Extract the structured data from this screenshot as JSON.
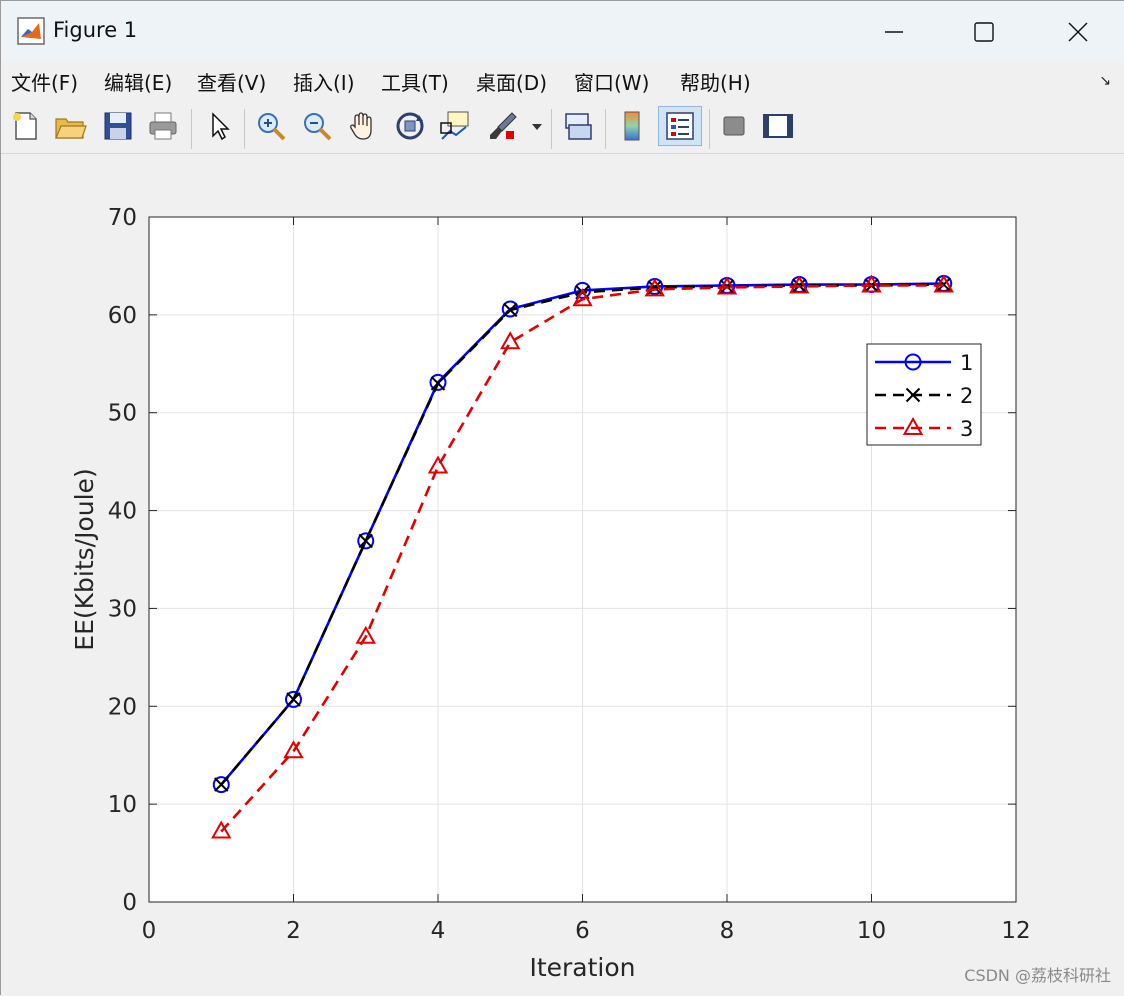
{
  "window": {
    "title": "Figure 1",
    "controls": [
      "minimize",
      "maximize",
      "close"
    ]
  },
  "menu": {
    "items": [
      {
        "label": "文件(F)",
        "name": "menu-file"
      },
      {
        "label": "编辑(E)",
        "name": "menu-edit"
      },
      {
        "label": "查看(V)",
        "name": "menu-view"
      },
      {
        "label": "插入(I)",
        "name": "menu-insert"
      },
      {
        "label": "工具(T)",
        "name": "menu-tools"
      },
      {
        "label": "桌面(D)",
        "name": "menu-desktop"
      },
      {
        "label": "窗口(W)",
        "name": "menu-window"
      },
      {
        "label": "帮助(H)",
        "name": "menu-help"
      }
    ],
    "dock_arrow": "↘"
  },
  "toolbar": {
    "icons": [
      "new-figure-icon",
      "open-file-icon",
      "save-icon",
      "print-icon",
      "select-arrow-icon",
      "zoom-in-icon",
      "zoom-out-icon",
      "pan-hand-icon",
      "rotate-3d-icon",
      "data-cursor-icon",
      "brush-icon",
      "brush-dropdown-icon",
      "link-plot-icon",
      "colorbar-icon",
      "legend-icon",
      "hide-plot-tools-icon",
      "show-plot-tools-icon"
    ],
    "active": "legend-icon"
  },
  "chart_data": {
    "type": "line",
    "xlabel": "Iteration",
    "ylabel": "EE(Kbits/Joule)",
    "xlim": [
      0,
      12
    ],
    "ylim": [
      0,
      70
    ],
    "xticks": [
      0,
      2,
      4,
      6,
      8,
      10,
      12
    ],
    "yticks": [
      0,
      10,
      20,
      30,
      40,
      50,
      60,
      70
    ],
    "grid": true,
    "legend_position": "upper-right",
    "series": [
      {
        "name": "1",
        "color": "#0000ff",
        "line": "solid",
        "marker": "circle",
        "x": [
          1,
          2,
          3,
          4,
          5,
          6,
          7,
          8,
          9,
          10,
          11
        ],
        "y": [
          12.0,
          20.7,
          36.9,
          53.1,
          60.6,
          62.5,
          62.9,
          63.0,
          63.1,
          63.1,
          63.2
        ]
      },
      {
        "name": "2",
        "color": "#000000",
        "line": "dashed",
        "marker": "x",
        "x": [
          1,
          2,
          3,
          4,
          5,
          6,
          7,
          8,
          9,
          10,
          11
        ],
        "y": [
          12.0,
          20.7,
          36.9,
          53.0,
          60.5,
          62.3,
          62.8,
          62.9,
          63.0,
          63.0,
          63.1
        ]
      },
      {
        "name": "3",
        "color": "#e00000",
        "line": "dashed",
        "marker": "triangle",
        "x": [
          1,
          2,
          3,
          4,
          5,
          6,
          7,
          8,
          9,
          10,
          11
        ],
        "y": [
          7.2,
          15.4,
          27.1,
          44.5,
          57.2,
          61.6,
          62.6,
          62.8,
          62.9,
          63.0,
          63.0
        ]
      }
    ]
  },
  "watermark": "CSDN @荔枝科研社"
}
